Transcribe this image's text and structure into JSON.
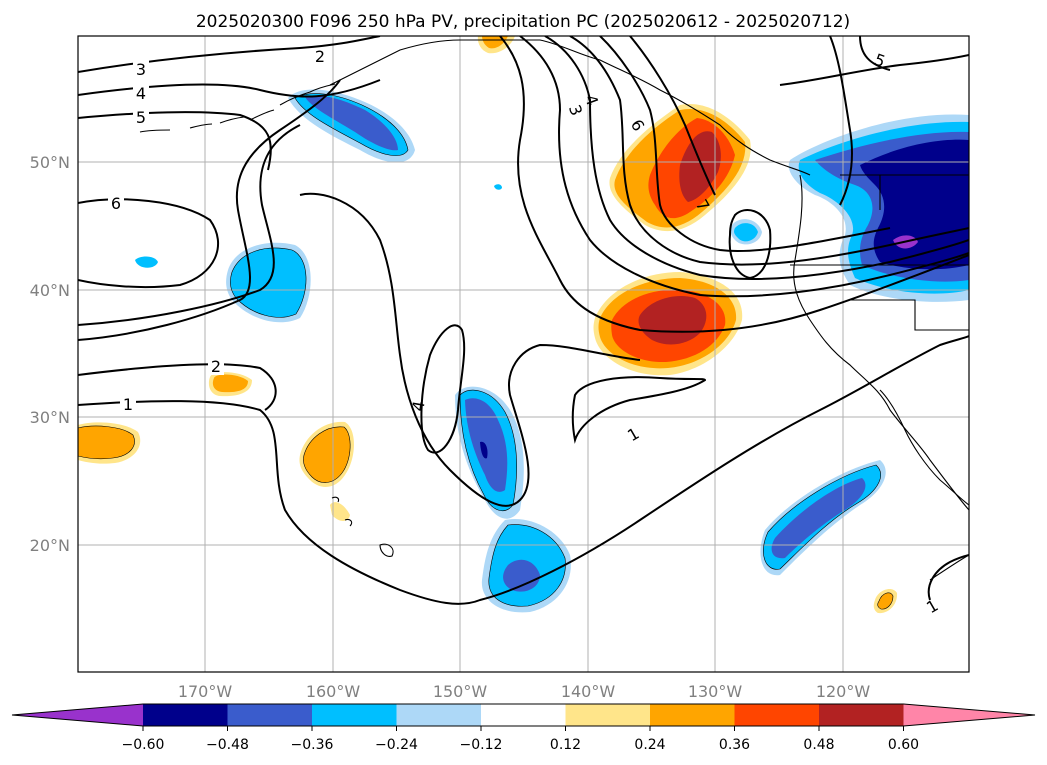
{
  "title": "2025020300 F096 250 hPa PV, precipitation PC (2025020612 - 2025020712)",
  "map": {
    "lat_labels": [
      "50°N",
      "40°N",
      "30°N",
      "20°N"
    ],
    "lon_labels": [
      "170°W",
      "160°W",
      "150°W",
      "140°W",
      "130°W",
      "120°W"
    ],
    "grid": true,
    "contour_labels": [
      "3",
      "4",
      "5",
      "6",
      "2",
      "1",
      "2",
      "4",
      "3",
      "4",
      "6",
      "7",
      "1",
      "5",
      "1"
    ]
  },
  "colorbar": {
    "tick_labels": [
      "−0.60",
      "−0.48",
      "−0.36",
      "−0.24",
      "−0.12",
      "0.12",
      "0.24",
      "0.36",
      "0.48",
      "0.60"
    ],
    "colors": [
      "#9932cc",
      "#00008b",
      "#3a5ccc",
      "#00bfff",
      "#add8f7",
      "#ffffff",
      "#ffe58a",
      "#ffa500",
      "#ff4500",
      "#b22222",
      "#ff85a8"
    ],
    "extend": "both"
  }
}
